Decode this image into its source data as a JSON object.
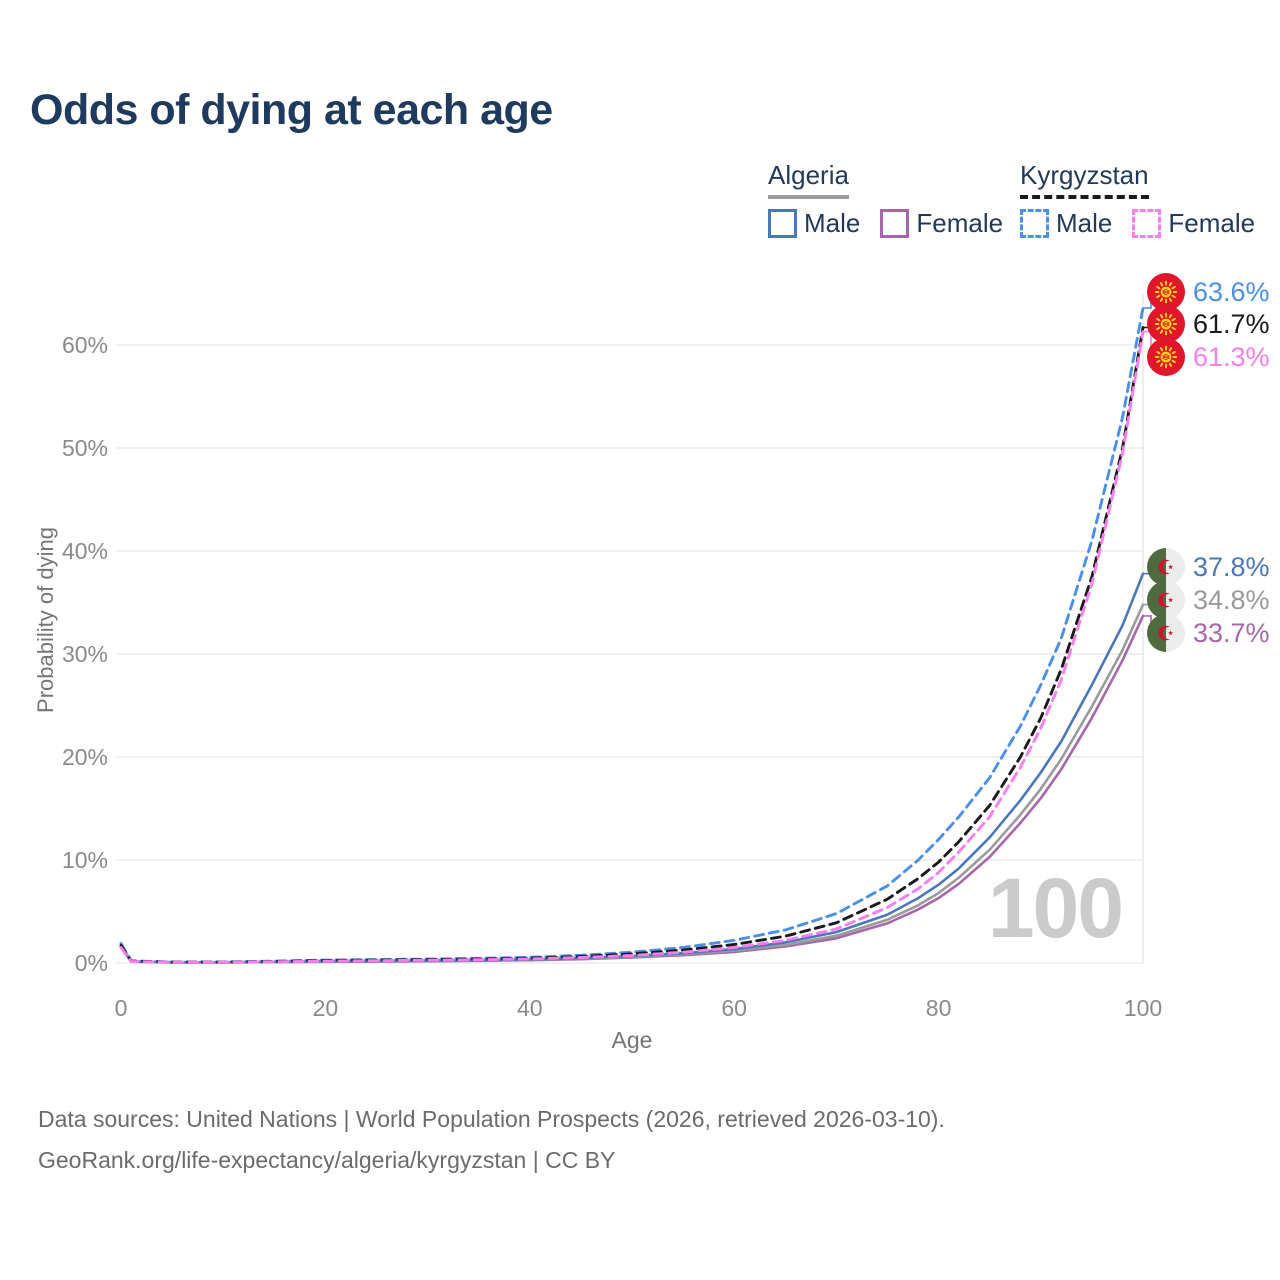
{
  "title": "Odds of dying at each age",
  "legend": {
    "algeria": {
      "label": "Algeria",
      "male": "Male",
      "female": "Female"
    },
    "kyrgyzstan": {
      "label": "Kyrgyzstan",
      "male": "Male",
      "female": "Female"
    }
  },
  "axes": {
    "x_label": "Age",
    "y_label": "Probability of dying",
    "x_ticks": [
      {
        "v": 0,
        "label": "0"
      },
      {
        "v": 20,
        "label": "20"
      },
      {
        "v": 40,
        "label": "40"
      },
      {
        "v": 60,
        "label": "60"
      },
      {
        "v": 80,
        "label": "80"
      },
      {
        "v": 100,
        "label": "100"
      }
    ],
    "y_ticks": [
      {
        "v": 0,
        "label": "0%"
      },
      {
        "v": 10,
        "label": "10%"
      },
      {
        "v": 20,
        "label": "20%"
      },
      {
        "v": 30,
        "label": "30%"
      },
      {
        "v": 40,
        "label": "40%"
      },
      {
        "v": 50,
        "label": "50%"
      },
      {
        "v": 60,
        "label": "60%"
      }
    ]
  },
  "hover_age_label": "100",
  "chart_data": {
    "type": "line",
    "title": "Odds of dying at each age",
    "xlabel": "Age",
    "ylabel": "Probability of dying",
    "x_range": [
      0,
      100
    ],
    "y_range_pct": [
      0,
      65
    ],
    "grid": "horizontal",
    "legend_position": "top-right",
    "series": [
      {
        "id": "algeria-female",
        "country": "Algeria",
        "sex": "Female",
        "color": "#a766ab",
        "dashed": false,
        "end_label": "33.7%",
        "points": [
          [
            0,
            1.5
          ],
          [
            1,
            0.13
          ],
          [
            5,
            0.06
          ],
          [
            10,
            0.06
          ],
          [
            15,
            0.09
          ],
          [
            20,
            0.12
          ],
          [
            25,
            0.14
          ],
          [
            30,
            0.17
          ],
          [
            35,
            0.21
          ],
          [
            40,
            0.27
          ],
          [
            45,
            0.37
          ],
          [
            50,
            0.53
          ],
          [
            55,
            0.76
          ],
          [
            60,
            1.08
          ],
          [
            65,
            1.6
          ],
          [
            70,
            2.4
          ],
          [
            75,
            3.85
          ],
          [
            78,
            5.2
          ],
          [
            80,
            6.3
          ],
          [
            82,
            7.7
          ],
          [
            85,
            10.3
          ],
          [
            88,
            13.6
          ],
          [
            90,
            16.0
          ],
          [
            92,
            18.8
          ],
          [
            95,
            23.8
          ],
          [
            98,
            29.4
          ],
          [
            100,
            33.7
          ]
        ]
      },
      {
        "id": "algeria-both",
        "country": "Algeria",
        "sex": "Both",
        "color": "#9a9a9a",
        "dashed": false,
        "end_label": "34.8%",
        "points": [
          [
            0,
            1.6
          ],
          [
            1,
            0.14
          ],
          [
            5,
            0.06
          ],
          [
            10,
            0.06
          ],
          [
            15,
            0.1
          ],
          [
            20,
            0.14
          ],
          [
            25,
            0.17
          ],
          [
            30,
            0.2
          ],
          [
            35,
            0.24
          ],
          [
            40,
            0.3
          ],
          [
            45,
            0.42
          ],
          [
            50,
            0.6
          ],
          [
            55,
            0.85
          ],
          [
            60,
            1.2
          ],
          [
            65,
            1.75
          ],
          [
            70,
            2.65
          ],
          [
            75,
            4.2
          ],
          [
            78,
            5.6
          ],
          [
            80,
            6.8
          ],
          [
            82,
            8.3
          ],
          [
            85,
            11.0
          ],
          [
            88,
            14.4
          ],
          [
            90,
            16.9
          ],
          [
            92,
            19.8
          ],
          [
            95,
            24.9
          ],
          [
            98,
            30.4
          ],
          [
            100,
            34.8
          ]
        ]
      },
      {
        "id": "algeria-male",
        "country": "Algeria",
        "sex": "Male",
        "color": "#4b78b8",
        "dashed": false,
        "end_label": "37.8%",
        "points": [
          [
            0,
            1.7
          ],
          [
            1,
            0.15
          ],
          [
            5,
            0.07
          ],
          [
            10,
            0.07
          ],
          [
            15,
            0.12
          ],
          [
            20,
            0.17
          ],
          [
            25,
            0.2
          ],
          [
            30,
            0.23
          ],
          [
            35,
            0.28
          ],
          [
            40,
            0.35
          ],
          [
            45,
            0.48
          ],
          [
            50,
            0.68
          ],
          [
            55,
            0.95
          ],
          [
            60,
            1.35
          ],
          [
            65,
            2.0
          ],
          [
            70,
            3.0
          ],
          [
            75,
            4.7
          ],
          [
            78,
            6.3
          ],
          [
            80,
            7.6
          ],
          [
            82,
            9.2
          ],
          [
            85,
            12.2
          ],
          [
            88,
            15.8
          ],
          [
            90,
            18.5
          ],
          [
            92,
            21.5
          ],
          [
            95,
            27.0
          ],
          [
            98,
            32.8
          ],
          [
            100,
            37.8
          ]
        ]
      },
      {
        "id": "kyrgyzstan-male",
        "country": "Kyrgyzstan",
        "sex": "Male",
        "color": "#4a8fe8",
        "dashed": true,
        "end_label": "63.6%",
        "points": [
          [
            0,
            1.9
          ],
          [
            1,
            0.2
          ],
          [
            5,
            0.1
          ],
          [
            10,
            0.1
          ],
          [
            15,
            0.18
          ],
          [
            20,
            0.28
          ],
          [
            25,
            0.33
          ],
          [
            30,
            0.38
          ],
          [
            35,
            0.45
          ],
          [
            40,
            0.55
          ],
          [
            45,
            0.75
          ],
          [
            50,
            1.05
          ],
          [
            55,
            1.5
          ],
          [
            60,
            2.2
          ],
          [
            65,
            3.2
          ],
          [
            70,
            4.8
          ],
          [
            75,
            7.5
          ],
          [
            78,
            10.0
          ],
          [
            80,
            12.0
          ],
          [
            82,
            14.2
          ],
          [
            85,
            18.0
          ],
          [
            88,
            23.0
          ],
          [
            90,
            27.0
          ],
          [
            92,
            31.5
          ],
          [
            95,
            41.0
          ],
          [
            98,
            53.0
          ],
          [
            100,
            63.6
          ]
        ]
      },
      {
        "id": "kyrgyzstan-both",
        "country": "Kyrgyzstan",
        "sex": "Both",
        "color": "#1a1a1a",
        "dashed": true,
        "end_label": "61.7%",
        "points": [
          [
            0,
            1.7
          ],
          [
            1,
            0.18
          ],
          [
            5,
            0.09
          ],
          [
            10,
            0.09
          ],
          [
            15,
            0.15
          ],
          [
            20,
            0.24
          ],
          [
            25,
            0.28
          ],
          [
            30,
            0.33
          ],
          [
            35,
            0.38
          ],
          [
            40,
            0.47
          ],
          [
            45,
            0.63
          ],
          [
            50,
            0.88
          ],
          [
            55,
            1.25
          ],
          [
            60,
            1.8
          ],
          [
            65,
            2.6
          ],
          [
            70,
            3.9
          ],
          [
            75,
            6.2
          ],
          [
            78,
            8.2
          ],
          [
            80,
            9.8
          ],
          [
            82,
            11.8
          ],
          [
            85,
            15.3
          ],
          [
            88,
            20.0
          ],
          [
            90,
            23.8
          ],
          [
            92,
            28.5
          ],
          [
            95,
            37.5
          ],
          [
            98,
            50.0
          ],
          [
            100,
            61.7
          ]
        ]
      },
      {
        "id": "kyrgyzstan-female",
        "country": "Kyrgyzstan",
        "sex": "Female",
        "color": "#f87df0",
        "dashed": true,
        "end_label": "61.3%",
        "points": [
          [
            0,
            1.5
          ],
          [
            1,
            0.16
          ],
          [
            5,
            0.08
          ],
          [
            10,
            0.08
          ],
          [
            15,
            0.12
          ],
          [
            20,
            0.18
          ],
          [
            25,
            0.22
          ],
          [
            30,
            0.27
          ],
          [
            35,
            0.32
          ],
          [
            40,
            0.4
          ],
          [
            45,
            0.53
          ],
          [
            50,
            0.73
          ],
          [
            55,
            1.05
          ],
          [
            60,
            1.5
          ],
          [
            65,
            2.2
          ],
          [
            70,
            3.3
          ],
          [
            75,
            5.4
          ],
          [
            78,
            7.2
          ],
          [
            80,
            8.8
          ],
          [
            82,
            10.8
          ],
          [
            85,
            14.2
          ],
          [
            88,
            19.0
          ],
          [
            90,
            22.8
          ],
          [
            92,
            27.5
          ],
          [
            95,
            36.8
          ],
          [
            98,
            49.5
          ],
          [
            100,
            61.3
          ]
        ]
      }
    ]
  },
  "flags": {
    "kyrgyzstan_red": "#e0162b",
    "kyrgyzstan_yellow": "#fbd116",
    "algeria_green": "#4e6a3e",
    "algeria_white": "#ececec",
    "algeria_red": "#d21034"
  },
  "footer": {
    "line1": "Data sources: United Nations | World Population Prospects (2026, retrieved 2026-03-10).",
    "line2": "GeoRank.org/life-expectancy/algeria/kyrgyzstan | CC BY"
  }
}
